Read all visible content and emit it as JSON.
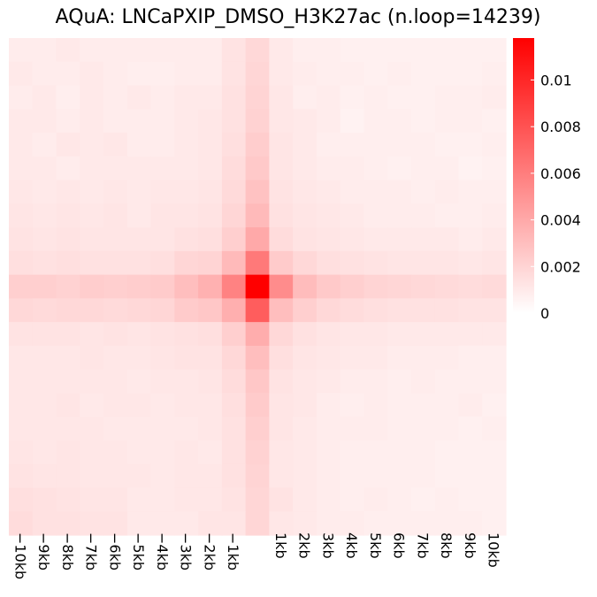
{
  "chart_data": {
    "type": "heatmap",
    "title": "AQuA: LNCaPXIP_DMSO_H3K27ac (n.loop=14239)",
    "x_tick_labels": [
      "−10kb",
      "−9kb",
      "−8kb",
      "−7kb",
      "−6kb",
      "−5kb",
      "−4kb",
      "−3kb",
      "−2kb",
      "−1kb",
      "",
      "1kb",
      "2kb",
      "3kb",
      "4kb",
      "5kb",
      "6kb",
      "7kb",
      "8kb",
      "9kb",
      "10kb"
    ],
    "colorbar": {
      "min": 0,
      "max": 0.0118,
      "ticks": [
        0,
        0.002,
        0.004,
        0.006,
        0.008,
        0.01
      ],
      "tick_labels": [
        "0",
        "0.002",
        "0.004",
        "0.006",
        "0.008",
        "0.01"
      ],
      "low_color": "#ffffff",
      "high_color": "#ff0000"
    },
    "matrix": [
      [
        0.0009,
        0.0009,
        0.001,
        0.0009,
        0.0009,
        0.0009,
        0.0009,
        0.0009,
        0.0009,
        0.0013,
        0.0018,
        0.001,
        0.0008,
        0.0008,
        0.0007,
        0.0007,
        0.0007,
        0.0007,
        0.0007,
        0.0007,
        0.0007
      ],
      [
        0.001,
        0.0009,
        0.0009,
        0.001,
        0.0009,
        0.0008,
        0.0008,
        0.0009,
        0.0009,
        0.0013,
        0.0019,
        0.001,
        0.0009,
        0.0008,
        0.0008,
        0.0007,
        0.0008,
        0.0007,
        0.0007,
        0.0007,
        0.0008
      ],
      [
        0.0009,
        0.001,
        0.0008,
        0.001,
        0.0009,
        0.001,
        0.0009,
        0.001,
        0.001,
        0.0014,
        0.002,
        0.0011,
        0.0008,
        0.0009,
        0.0007,
        0.0008,
        0.0007,
        0.0007,
        0.0008,
        0.0008,
        0.0009
      ],
      [
        0.001,
        0.001,
        0.0009,
        0.001,
        0.0009,
        0.0009,
        0.0009,
        0.001,
        0.0011,
        0.0014,
        0.0021,
        0.0011,
        0.001,
        0.0009,
        0.0006,
        0.0008,
        0.0008,
        0.0007,
        0.0008,
        0.0008,
        0.0007
      ],
      [
        0.001,
        0.0009,
        0.0011,
        0.001,
        0.0011,
        0.0009,
        0.0009,
        0.001,
        0.0011,
        0.0015,
        0.0023,
        0.0012,
        0.001,
        0.0008,
        0.0008,
        0.0008,
        0.0008,
        0.0008,
        0.0007,
        0.0007,
        0.0008
      ],
      [
        0.001,
        0.001,
        0.0009,
        0.001,
        0.001,
        0.001,
        0.001,
        0.001,
        0.0011,
        0.0016,
        0.0025,
        0.0012,
        0.001,
        0.0009,
        0.0009,
        0.0008,
        0.0007,
        0.0008,
        0.0008,
        0.0006,
        0.0007
      ],
      [
        0.0011,
        0.001,
        0.0011,
        0.001,
        0.0011,
        0.001,
        0.0011,
        0.0011,
        0.0012,
        0.0017,
        0.0028,
        0.0013,
        0.0011,
        0.001,
        0.0009,
        0.0009,
        0.0009,
        0.0008,
        0.0009,
        0.0008,
        0.0008
      ],
      [
        0.0012,
        0.0011,
        0.0012,
        0.0011,
        0.0012,
        0.001,
        0.0012,
        0.0012,
        0.0013,
        0.0019,
        0.0032,
        0.0014,
        0.0012,
        0.0011,
        0.001,
        0.0009,
        0.0009,
        0.0009,
        0.0008,
        0.0008,
        0.0009
      ],
      [
        0.0013,
        0.0012,
        0.0013,
        0.0012,
        0.0012,
        0.0012,
        0.0012,
        0.0014,
        0.0015,
        0.0022,
        0.004,
        0.0016,
        0.0013,
        0.0012,
        0.0011,
        0.001,
        0.001,
        0.001,
        0.001,
        0.0009,
        0.001
      ],
      [
        0.0015,
        0.0014,
        0.0015,
        0.0014,
        0.0014,
        0.0014,
        0.0015,
        0.0019,
        0.002,
        0.0032,
        0.0062,
        0.0024,
        0.0018,
        0.0015,
        0.0014,
        0.0013,
        0.0012,
        0.0012,
        0.0012,
        0.0011,
        0.0012
      ],
      [
        0.0022,
        0.0022,
        0.0021,
        0.0023,
        0.0022,
        0.0023,
        0.0024,
        0.003,
        0.0036,
        0.0058,
        0.0118,
        0.0053,
        0.0031,
        0.0025,
        0.0022,
        0.002,
        0.0019,
        0.0018,
        0.0017,
        0.0016,
        0.0017
      ],
      [
        0.0018,
        0.0017,
        0.0018,
        0.0018,
        0.0017,
        0.0018,
        0.0019,
        0.0024,
        0.0026,
        0.0037,
        0.0075,
        0.003,
        0.0022,
        0.0018,
        0.0016,
        0.0015,
        0.0014,
        0.0014,
        0.0014,
        0.0013,
        0.0013
      ],
      [
        0.0013,
        0.0013,
        0.0013,
        0.0012,
        0.0013,
        0.0012,
        0.0013,
        0.0014,
        0.0015,
        0.0022,
        0.0038,
        0.0018,
        0.0014,
        0.0012,
        0.0011,
        0.0011,
        0.001,
        0.001,
        0.001,
        0.001,
        0.001
      ],
      [
        0.0011,
        0.0011,
        0.0011,
        0.0012,
        0.0011,
        0.0011,
        0.0012,
        0.0013,
        0.0013,
        0.0018,
        0.003,
        0.0015,
        0.0012,
        0.0011,
        0.001,
        0.001,
        0.0009,
        0.0009,
        0.0009,
        0.0008,
        0.0008
      ],
      [
        0.0011,
        0.0011,
        0.0011,
        0.0011,
        0.0011,
        0.001,
        0.0011,
        0.0011,
        0.0012,
        0.0016,
        0.0026,
        0.0013,
        0.0011,
        0.001,
        0.0009,
        0.0009,
        0.0008,
        0.0009,
        0.0008,
        0.0008,
        0.0008
      ],
      [
        0.0011,
        0.0011,
        0.0012,
        0.001,
        0.0011,
        0.0011,
        0.001,
        0.0011,
        0.0011,
        0.0015,
        0.0024,
        0.0012,
        0.0011,
        0.0009,
        0.0008,
        0.0009,
        0.0008,
        0.0008,
        0.0008,
        0.0009,
        0.0007
      ],
      [
        0.0011,
        0.0011,
        0.0011,
        0.0011,
        0.001,
        0.001,
        0.001,
        0.001,
        0.0011,
        0.0014,
        0.0022,
        0.0012,
        0.001,
        0.0009,
        0.0009,
        0.0009,
        0.0008,
        0.0008,
        0.0008,
        0.0007,
        0.0008
      ],
      [
        0.0012,
        0.0011,
        0.0012,
        0.0011,
        0.0011,
        0.001,
        0.001,
        0.0011,
        0.001,
        0.0014,
        0.0021,
        0.0011,
        0.001,
        0.0009,
        0.0008,
        0.0008,
        0.0008,
        0.0008,
        0.0007,
        0.0007,
        0.0007
      ],
      [
        0.0013,
        0.0012,
        0.0012,
        0.0011,
        0.0011,
        0.0011,
        0.001,
        0.0011,
        0.0011,
        0.0014,
        0.002,
        0.0011,
        0.001,
        0.0009,
        0.0008,
        0.0008,
        0.0008,
        0.0008,
        0.0007,
        0.0007,
        0.0007
      ],
      [
        0.0015,
        0.0014,
        0.0013,
        0.0012,
        0.0012,
        0.001,
        0.001,
        0.0011,
        0.0011,
        0.0013,
        0.0019,
        0.0013,
        0.001,
        0.0009,
        0.0008,
        0.0009,
        0.0008,
        0.0007,
        0.0008,
        0.0007,
        0.0007
      ],
      [
        0.0016,
        0.0014,
        0.0014,
        0.0013,
        0.0013,
        0.001,
        0.001,
        0.001,
        0.0012,
        0.0012,
        0.0019,
        0.0011,
        0.001,
        0.0009,
        0.0009,
        0.0008,
        0.0008,
        0.0008,
        0.0008,
        0.0008,
        0.0007
      ]
    ]
  }
}
